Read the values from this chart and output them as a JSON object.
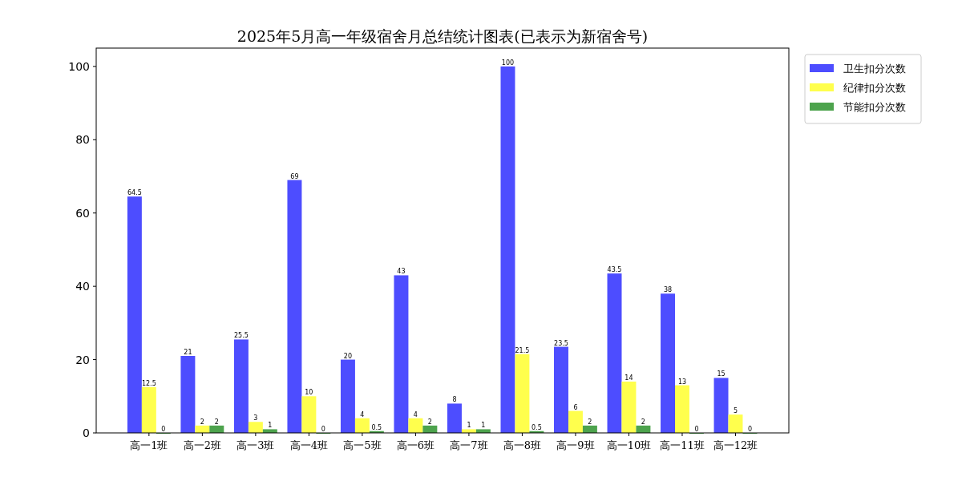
{
  "chart_data": {
    "type": "bar",
    "title": "2025年5月高一年级宿舍月总结统计图表(已表示为新宿舍号)",
    "categories": [
      "高一1班",
      "高一2班",
      "高一3班",
      "高一4班",
      "高一5班",
      "高一6班",
      "高一7班",
      "高一8班",
      "高一9班",
      "高一10班",
      "高一11班",
      "高一12班"
    ],
    "series": [
      {
        "name": "卫生扣分次数",
        "color": "#4d4dff",
        "values": [
          64.5,
          21,
          25.5,
          69,
          20,
          43,
          8,
          100,
          23.5,
          43.5,
          38,
          15
        ]
      },
      {
        "name": "纪律扣分次数",
        "color": "#ffff4d",
        "values": [
          12.5,
          2,
          3,
          10,
          4,
          4,
          1,
          21.5,
          6,
          14,
          13,
          5
        ]
      },
      {
        "name": "节能扣分次数",
        "color": "#4da34d",
        "values": [
          0,
          2,
          1,
          0,
          0.5,
          2,
          1,
          0.5,
          2,
          2,
          0,
          0
        ]
      }
    ],
    "ylim": [
      0,
      105
    ],
    "yticks": [
      0,
      20,
      40,
      60,
      80,
      100
    ],
    "data_labels": true,
    "legend": "top right",
    "grid": false
  }
}
